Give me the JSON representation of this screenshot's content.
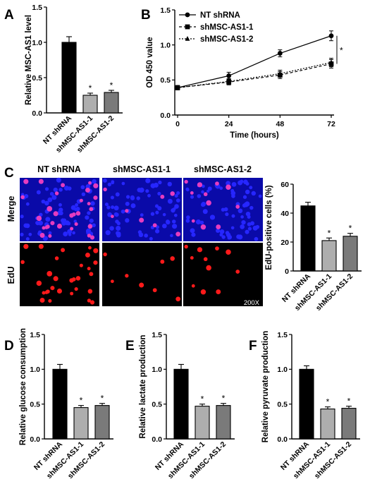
{
  "panel_labels": {
    "a": "A",
    "b": "B",
    "c": "C",
    "d": "D",
    "e": "E",
    "f": "F"
  },
  "colors": {
    "nt": "#000000",
    "sh1": "#aeaeae",
    "sh2": "#7a7a7a",
    "merge_background": "#0a0aa8",
    "merge_nucleus": "#2626ff",
    "edu_background": "#000000",
    "edu_cell": "#ff1a1a",
    "merge_edu_cell": "#e63cc0"
  },
  "micrographs": {
    "columns": [
      "NT shRNA",
      "shMSC-AS1-1",
      "shMSC-AS1-2"
    ],
    "rows": [
      "Merge",
      "EdU"
    ],
    "magnification": "200X"
  },
  "chart_data": [
    {
      "id": "a",
      "type": "bar",
      "ylabel": "Relative MSC-AS1 level",
      "ylim": [
        0,
        1.5
      ],
      "yticks": [
        0,
        0.5,
        1.0,
        1.5
      ],
      "ytick_labels": [
        "0.0",
        "0.5",
        "1.0",
        "1.5"
      ],
      "categories": [
        "NT shRNA",
        "shMSC-AS1-1",
        "shMSC-AS1-2"
      ],
      "values": [
        1.0,
        0.25,
        0.29
      ],
      "errors": [
        0.08,
        0.03,
        0.03
      ],
      "annotations": [
        "",
        "*",
        "*"
      ]
    },
    {
      "id": "b",
      "type": "line",
      "xlabel": "Time (hours)",
      "ylabel": "OD 450 value",
      "x": [
        0,
        24,
        48,
        72
      ],
      "xticks": [
        "0",
        "24",
        "48",
        "72"
      ],
      "ylim": [
        0,
        1.5
      ],
      "yticks": [
        0,
        0.5,
        1.0,
        1.5
      ],
      "ytick_labels": [
        "0.0",
        "0.5",
        "1.0",
        "1.5"
      ],
      "legend_position": "top-left",
      "series": [
        {
          "name": "NT shRNA",
          "marker": "circle",
          "linestyle": "solid",
          "values": [
            0.39,
            0.56,
            0.88,
            1.13
          ],
          "errors": [
            0.03,
            0.05,
            0.05,
            0.07
          ]
        },
        {
          "name": "shMSC-AS1-1",
          "marker": "square",
          "linestyle": "dashed",
          "values": [
            0.39,
            0.47,
            0.57,
            0.73
          ],
          "errors": [
            0.03,
            0.04,
            0.05,
            0.06
          ]
        },
        {
          "name": "shMSC-AS1-2",
          "marker": "triangle",
          "linestyle": "dotted",
          "values": [
            0.39,
            0.48,
            0.59,
            0.75
          ],
          "errors": [
            0.03,
            0.04,
            0.05,
            0.06
          ]
        }
      ],
      "annotation": "*"
    },
    {
      "id": "c",
      "type": "bar",
      "ylabel": "EdU-positive cells (%)",
      "ylim": [
        0,
        60
      ],
      "yticks": [
        0,
        20,
        40,
        60
      ],
      "ytick_labels": [
        "0",
        "20",
        "40",
        "60"
      ],
      "categories": [
        "NT shRNA",
        "shMSC-AS1-1",
        "shMSC-AS1-2"
      ],
      "values": [
        45,
        21,
        24
      ],
      "errors": [
        2.5,
        1.8,
        2.0
      ],
      "annotations": [
        "",
        "*",
        "*"
      ]
    },
    {
      "id": "d",
      "type": "bar",
      "ylabel": "Relative glucose consumption",
      "ylim": [
        0,
        1.5
      ],
      "yticks": [
        0,
        0.5,
        1.0,
        1.5
      ],
      "ytick_labels": [
        "0.0",
        "0.5",
        "1.0",
        "1.5"
      ],
      "categories": [
        "NT shRNA",
        "shMSC-AS1-1",
        "shMSC-AS1-2"
      ],
      "values": [
        1.0,
        0.45,
        0.48
      ],
      "errors": [
        0.07,
        0.03,
        0.03
      ],
      "annotations": [
        "",
        "*",
        "*"
      ]
    },
    {
      "id": "e",
      "type": "bar",
      "ylabel": "Relative lactate production",
      "ylim": [
        0,
        1.5
      ],
      "yticks": [
        0,
        0.5,
        1.0,
        1.5
      ],
      "ytick_labels": [
        "0.0",
        "0.5",
        "1.0",
        "1.5"
      ],
      "categories": [
        "NT shRNA",
        "shMSC-AS1-1",
        "shMSC-AS1-2"
      ],
      "values": [
        1.0,
        0.47,
        0.48
      ],
      "errors": [
        0.07,
        0.03,
        0.03
      ],
      "annotations": [
        "",
        "*",
        "*"
      ]
    },
    {
      "id": "f",
      "type": "bar",
      "ylabel": "Relative pyruvate production",
      "ylim": [
        0,
        1.5
      ],
      "yticks": [
        0,
        0.5,
        1.0,
        1.5
      ],
      "ytick_labels": [
        "0.0",
        "0.5",
        "1.0",
        "1.5"
      ],
      "categories": [
        "NT shRNA",
        "shMSC-AS1-1",
        "shMSC-AS1-2"
      ],
      "values": [
        1.0,
        0.43,
        0.44
      ],
      "errors": [
        0.05,
        0.03,
        0.03
      ],
      "annotations": [
        "",
        "*",
        "*"
      ]
    }
  ]
}
